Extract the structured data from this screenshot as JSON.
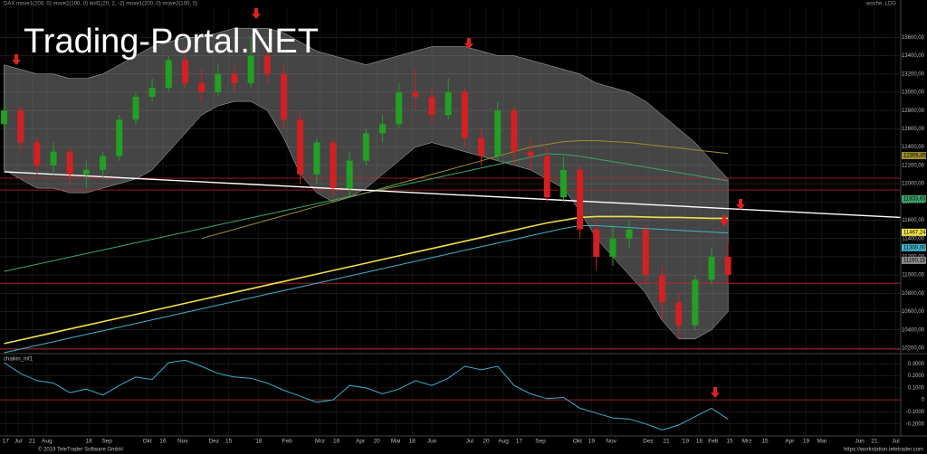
{
  "header": {
    "title": "DAX move1(200, 0) move2(100, 0) boll1(20, 2, -2) move1(200, 0) move2(100, 0)",
    "interval": "woche, LDG"
  },
  "watermark": "Trading-Portal.NET",
  "footer": {
    "copyright": "© 2019 TeleTrader Software GmbH",
    "url": "https://workstation.teletrader.com"
  },
  "chart_data": [
    {
      "type": "candlestick",
      "up_color": "#22a022",
      "down_color": "#d42020",
      "x": [
        0,
        2,
        4,
        6,
        8,
        10,
        12,
        14,
        16,
        18,
        20,
        22,
        24,
        26,
        28,
        30,
        32,
        34,
        36,
        38,
        40,
        42,
        44,
        46,
        48,
        50,
        52,
        54,
        56,
        58,
        60,
        62,
        64,
        66,
        68,
        70,
        72,
        74,
        76,
        78,
        80,
        82,
        84,
        86,
        88
      ],
      "open": [
        12650,
        12800,
        12450,
        12200,
        12350,
        12100,
        12150,
        12300,
        12700,
        12950,
        13050,
        13350,
        13100,
        13000,
        13200,
        13100,
        13400,
        13200,
        12700,
        12100,
        12450,
        11950,
        12250,
        12550,
        12650,
        13000,
        12950,
        12750,
        13000,
        12500,
        12300,
        12800,
        12350,
        12300,
        11850,
        12150,
        11500,
        11200,
        11400,
        11500,
        11000,
        10700,
        10450,
        10950,
        11200
      ],
      "high": [
        12900,
        12850,
        12500,
        12450,
        12400,
        12250,
        12350,
        12750,
        13000,
        13150,
        13400,
        13500,
        13250,
        13300,
        13300,
        13600,
        13500,
        13300,
        12800,
        12500,
        12500,
        12350,
        12600,
        12750,
        13100,
        13250,
        13050,
        13150,
        13050,
        12600,
        12900,
        12850,
        12500,
        12400,
        12300,
        12200,
        11600,
        11550,
        11600,
        11550,
        11100,
        10800,
        11000,
        11300,
        11350
      ],
      "low": [
        12600,
        12350,
        12100,
        12100,
        12000,
        11950,
        12050,
        12250,
        12650,
        12900,
        13000,
        13050,
        12900,
        12950,
        13000,
        13050,
        13100,
        12600,
        12000,
        12000,
        11850,
        11850,
        12200,
        12450,
        12600,
        12800,
        12650,
        12700,
        12400,
        12200,
        12250,
        12200,
        12150,
        11800,
        11800,
        11400,
        11050,
        11100,
        11300,
        10900,
        10500,
        10300,
        10400,
        10900,
        10900
      ],
      "close": [
        12800,
        12450,
        12200,
        12350,
        12100,
        12150,
        12300,
        12700,
        12950,
        13050,
        13350,
        13100,
        13000,
        13200,
        13100,
        13400,
        13200,
        12700,
        12100,
        12450,
        11950,
        12250,
        12550,
        12650,
        13000,
        12950,
        12750,
        13000,
        12500,
        12300,
        12800,
        12350,
        12300,
        11850,
        12150,
        11500,
        11200,
        11400,
        11500,
        11000,
        10700,
        10450,
        10950,
        11200,
        11000
      ],
      "bands": {
        "color": "#9a9a9a",
        "upper": [
          13300,
          13250,
          13200,
          13200,
          13150,
          13150,
          13200,
          13300,
          13400,
          13500,
          13550,
          13600,
          13600,
          13650,
          13700,
          13700,
          13700,
          13650,
          13550,
          13450,
          13400,
          13350,
          13300,
          13350,
          13400,
          13450,
          13500,
          13500,
          13500,
          13450,
          13400,
          13400,
          13350,
          13300,
          13250,
          13200,
          13100,
          13050,
          13000,
          12900,
          12750,
          12600,
          12450,
          12250,
          12050
        ],
        "lower": [
          12150,
          12050,
          11950,
          11950,
          11900,
          11900,
          11950,
          12000,
          12050,
          12150,
          12350,
          12550,
          12750,
          12850,
          12900,
          12900,
          12800,
          12500,
          12100,
          11900,
          11800,
          11850,
          11950,
          12100,
          12250,
          12400,
          12450,
          12400,
          12350,
          12300,
          12250,
          12200,
          12150,
          12050,
          11950,
          11700,
          11400,
          11200,
          11000,
          10800,
          10500,
          10300,
          10300,
          10400,
          10600
        ]
      },
      "series": [
        {
          "color": "#3aa56a",
          "values": [
            11040,
            11079,
            11118,
            11157,
            11196,
            11235,
            11274,
            11313,
            11352,
            11391,
            11430,
            11469,
            11508,
            11547,
            11586,
            11625,
            11664,
            11703,
            11742,
            11781,
            11820,
            11859,
            11898,
            11937,
            11976,
            12015,
            12054,
            12093,
            12132,
            12171,
            12210,
            12249,
            12288,
            12327,
            12320,
            12300,
            12270,
            12240,
            12210,
            12180,
            12150,
            12120,
            12090,
            12060,
            12030
          ]
        },
        {
          "color": "#9a8f2a",
          "values": [
            null,
            null,
            null,
            null,
            null,
            null,
            null,
            null,
            null,
            null,
            null,
            null,
            11400,
            11450,
            11500,
            11550,
            11600,
            11650,
            11700,
            11750,
            11800,
            11850,
            11900,
            11950,
            12000,
            12050,
            12100,
            12150,
            12200,
            12250,
            12300,
            12350,
            12400,
            12430,
            12460,
            12470,
            12470,
            12460,
            12450,
            12430,
            12410,
            12390,
            12370,
            12350,
            12330
          ]
        },
        {
          "color": "#3fb4c8",
          "values": [
            10150,
            10190,
            10230,
            10270,
            10310,
            10350,
            10390,
            10430,
            10470,
            10510,
            10550,
            10590,
            10630,
            10670,
            10710,
            10750,
            10790,
            10830,
            10870,
            10910,
            10950,
            10990,
            11030,
            11070,
            11110,
            11150,
            11190,
            11230,
            11270,
            11310,
            11350,
            11390,
            11430,
            11470,
            11510,
            11540,
            11540,
            11530,
            11520,
            11510,
            11500,
            11490,
            11480,
            11470,
            11460
          ]
        },
        {
          "color": "#f0e04a",
          "values": [
            10250,
            10290,
            10330,
            10370,
            10410,
            10450,
            10490,
            10530,
            10570,
            10610,
            10650,
            10690,
            10730,
            10770,
            10810,
            10850,
            10890,
            10930,
            10970,
            11010,
            11050,
            11090,
            11130,
            11170,
            11210,
            11250,
            11290,
            11330,
            11370,
            11410,
            11450,
            11490,
            11530,
            11570,
            11600,
            11630,
            11640,
            11640,
            11640,
            11635,
            11630,
            11630,
            11625,
            11620,
            11620
          ]
        }
      ],
      "levels": {
        "color": "#c0282c",
        "values": [
          12060,
          11930,
          10910,
          10190
        ]
      },
      "trendline": {
        "color": "#ffffff",
        "x": [
          0,
          109
        ],
        "values": [
          12130,
          11630
        ]
      },
      "tags": [
        {
          "value": 12306.85,
          "label": "12306,85",
          "color": "#9a8f2a"
        },
        {
          "value": 11833.63,
          "label": "11833,63",
          "color": "#3aa56a"
        },
        {
          "value": 11467.24,
          "label": "11467,24",
          "color": "#f0e04a"
        },
        {
          "value": 11300,
          "label": "11300,00",
          "color": "#3fb4c8"
        },
        {
          "value": 11160.15,
          "label": "11160,15",
          "color": "#8a8a8a"
        }
      ],
      "xlim": [
        -0.5,
        109
      ],
      "ylim": [
        10150,
        13930
      ],
      "yticks": [
        {
          "value": 10200,
          "label": "10200,00"
        },
        {
          "value": 10400,
          "label": "10400,00"
        },
        {
          "value": 10600,
          "label": "10600,00"
        },
        {
          "value": 10800,
          "label": "10800,00"
        },
        {
          "value": 11000,
          "label": "11000,00"
        },
        {
          "value": 11200,
          "label": "11200,00"
        },
        {
          "value": 11400,
          "label": "11400,00"
        },
        {
          "value": 11600,
          "label": "11600,00"
        },
        {
          "value": 11800,
          "label": "11800,00"
        },
        {
          "value": 12000,
          "label": "12000,00"
        },
        {
          "value": 12200,
          "label": "12200,00"
        },
        {
          "value": 12400,
          "label": "12400,00"
        },
        {
          "value": 12600,
          "label": "12600,00"
        },
        {
          "value": 12800,
          "label": "12800,00"
        },
        {
          "value": 13000,
          "label": "13000,00"
        },
        {
          "value": 13200,
          "label": "13200,00"
        },
        {
          "value": 13400,
          "label": "13400,00"
        },
        {
          "value": 13600,
          "label": "13600,00"
        }
      ],
      "xticks": [
        {
          "value": 0.2,
          "label": "17"
        },
        {
          "value": 1.7,
          "label": "Jul"
        },
        {
          "value": 3.4,
          "label": "21"
        },
        {
          "value": 5.2,
          "label": "Aug"
        },
        {
          "value": 10.3,
          "label": "18"
        },
        {
          "value": 12.5,
          "label": "Sep"
        },
        {
          "value": 17.4,
          "label": "Okt"
        },
        {
          "value": 19.3,
          "label": "16"
        },
        {
          "value": 21.7,
          "label": "Nov"
        },
        {
          "value": 25.5,
          "label": "Dez"
        },
        {
          "value": 27.3,
          "label": "15"
        },
        {
          "value": 30.9,
          "label": "'18"
        },
        {
          "value": 34.4,
          "label": "Feb"
        },
        {
          "value": 38.4,
          "label": "Mrz"
        },
        {
          "value": 40.4,
          "label": "16"
        },
        {
          "value": 43.3,
          "label": "Apr"
        },
        {
          "value": 45.3,
          "label": "20"
        },
        {
          "value": 47.6,
          "label": "Mai"
        },
        {
          "value": 49.6,
          "label": "18"
        },
        {
          "value": 52.0,
          "label": "Jun"
        },
        {
          "value": 56.6,
          "label": "Jul"
        },
        {
          "value": 58.6,
          "label": "20"
        },
        {
          "value": 60.7,
          "label": "Aug"
        },
        {
          "value": 62.6,
          "label": "17"
        },
        {
          "value": 65.2,
          "label": "Sep"
        },
        {
          "value": 69.7,
          "label": "Okt"
        },
        {
          "value": 71.4,
          "label": "19"
        },
        {
          "value": 73.8,
          "label": "Nov"
        },
        {
          "value": 78.3,
          "label": "Dez"
        },
        {
          "value": 80.5,
          "label": "21"
        },
        {
          "value": 82.8,
          "label": "'19"
        },
        {
          "value": 84.5,
          "label": "18"
        },
        {
          "value": 86.2,
          "label": "Feb"
        },
        {
          "value": 88.2,
          "label": "15"
        },
        {
          "value": 90.3,
          "label": "Mrz"
        },
        {
          "value": 92.5,
          "label": "15"
        },
        {
          "value": 95.5,
          "label": "Apr"
        },
        {
          "value": 97.5,
          "label": "19"
        },
        {
          "value": 99.4,
          "label": "Mai"
        },
        {
          "value": 104.0,
          "label": "Jun"
        },
        {
          "value": 105.8,
          "label": "21"
        },
        {
          "value": 108.4,
          "label": "Jul"
        }
      ],
      "grid": true
    },
    {
      "type": "line",
      "title": "chaikin_mf1",
      "x": [
        0,
        2,
        4,
        6,
        8,
        10,
        12,
        14,
        16,
        18,
        20,
        22,
        24,
        26,
        28,
        30,
        32,
        34,
        36,
        38,
        40,
        42,
        44,
        46,
        48,
        50,
        52,
        54,
        56,
        58,
        60,
        62,
        64,
        66,
        68,
        70,
        72,
        74,
        76,
        78,
        80,
        82,
        84,
        86,
        88
      ],
      "series": [
        {
          "color": "#3ab0c8",
          "values": [
            0.31,
            0.22,
            0.16,
            0.14,
            0.06,
            0.09,
            0.04,
            0.12,
            0.19,
            0.17,
            0.31,
            0.33,
            0.28,
            0.22,
            0.19,
            0.18,
            0.14,
            0.08,
            0.03,
            -0.02,
            0.0,
            0.12,
            0.1,
            0.05,
            0.09,
            0.16,
            0.12,
            0.18,
            0.28,
            0.25,
            0.28,
            0.12,
            0.05,
            0.01,
            0.02,
            -0.07,
            -0.11,
            -0.15,
            -0.16,
            -0.2,
            -0.25,
            -0.21,
            -0.14,
            -0.07,
            -0.16
          ]
        }
      ],
      "levels": {
        "color": "#c0282c",
        "values": [
          0
        ]
      },
      "xlim": [
        -0.5,
        109
      ],
      "ylim": [
        -0.3,
        0.37
      ],
      "yticks": [
        {
          "value": -0.2,
          "label": "-0.2000"
        },
        {
          "value": -0.1,
          "label": "-0.1000"
        },
        0,
        {
          "value": 0.1,
          "label": "0.1000"
        },
        {
          "value": 0.2,
          "label": "0.2000"
        },
        {
          "value": 0.3,
          "label": "0.3000"
        }
      ],
      "grid": true
    }
  ]
}
